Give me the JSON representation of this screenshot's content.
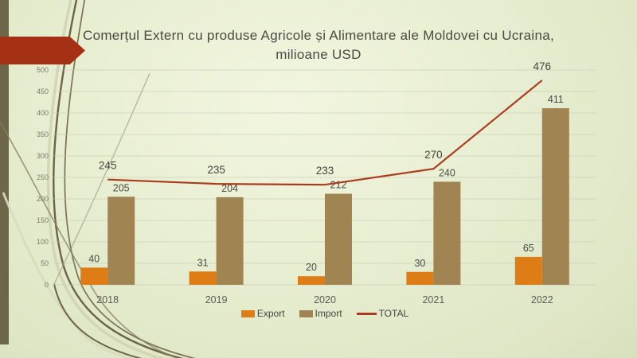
{
  "slide": {
    "title": "Comerțul Extern cu produse Agricole și Alimentare ale Moldovei cu Ucraina, milioane USD"
  },
  "colors": {
    "accent_arrow": "#a53114",
    "left_bar": "#6c664a",
    "background_light": "#f2f6e0",
    "background_dark": "#d7e1bd",
    "export_orange": "#de7c15",
    "import_brown": "#a08451",
    "total_red": "#aa3b1e"
  },
  "chart_data": {
    "type": "bar",
    "subtype": "grouped bars with overlay line",
    "title": "Comerțul Extern cu produse Agricole și Alimentare ale Moldovei cu Ucraina, milioane USD",
    "categories": [
      "2018",
      "2019",
      "2020",
      "2021",
      "2022"
    ],
    "series": [
      {
        "name": "Export",
        "type": "bar",
        "color": "#de7c15",
        "values": [
          40,
          31,
          20,
          30,
          65
        ]
      },
      {
        "name": "Import",
        "type": "bar",
        "color": "#a08451",
        "values": [
          205,
          204,
          212,
          240,
          411
        ]
      },
      {
        "name": "TOTAL",
        "type": "line",
        "color": "#aa3b1e",
        "values": [
          245,
          235,
          233,
          270,
          476
        ]
      }
    ],
    "xlabel": "",
    "ylabel": "",
    "ylim": [
      0,
      500
    ],
    "yticks": [
      0,
      50,
      100,
      150,
      200,
      250,
      300,
      350,
      400,
      450,
      500
    ],
    "grid": true,
    "data_labels": true,
    "legend_position": "bottom"
  }
}
